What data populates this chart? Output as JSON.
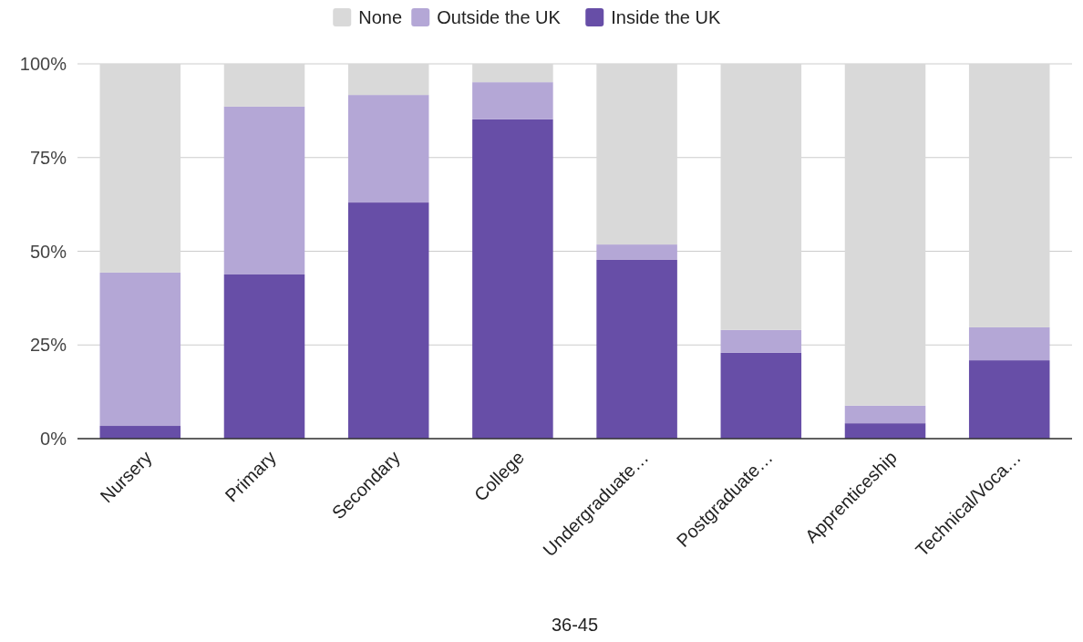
{
  "chart_data": {
    "type": "bar",
    "stacked": true,
    "xlabel": "36-45",
    "categories": [
      "Nursery",
      "Primary",
      "Secondary",
      "College",
      "Undergraduate…",
      "Postgraduate…",
      "Apprenticeship",
      "Technical/Voca…"
    ],
    "series": [
      {
        "name": "Inside the UK",
        "color": "#674ea7",
        "values": [
          3.4,
          43.8,
          63.0,
          85.2,
          47.7,
          22.9,
          4.1,
          20.9
        ]
      },
      {
        "name": "Outside the UK",
        "color": "#b4a7d6",
        "values": [
          40.9,
          44.8,
          28.7,
          9.9,
          4.1,
          6.1,
          4.7,
          8.8
        ]
      },
      {
        "name": "None",
        "color": "#d9d9d9",
        "values": [
          55.7,
          11.4,
          8.3,
          4.9,
          48.2,
          71.0,
          91.2,
          70.3
        ]
      }
    ],
    "ylim": [
      0,
      100
    ],
    "yticks": [
      {
        "value": 0,
        "label": "0%"
      },
      {
        "value": 25,
        "label": "25%"
      },
      {
        "value": 50,
        "label": "50%"
      },
      {
        "value": 75,
        "label": "75%"
      },
      {
        "value": 100,
        "label": "100%"
      }
    ],
    "grid": "y",
    "legend": "top"
  }
}
